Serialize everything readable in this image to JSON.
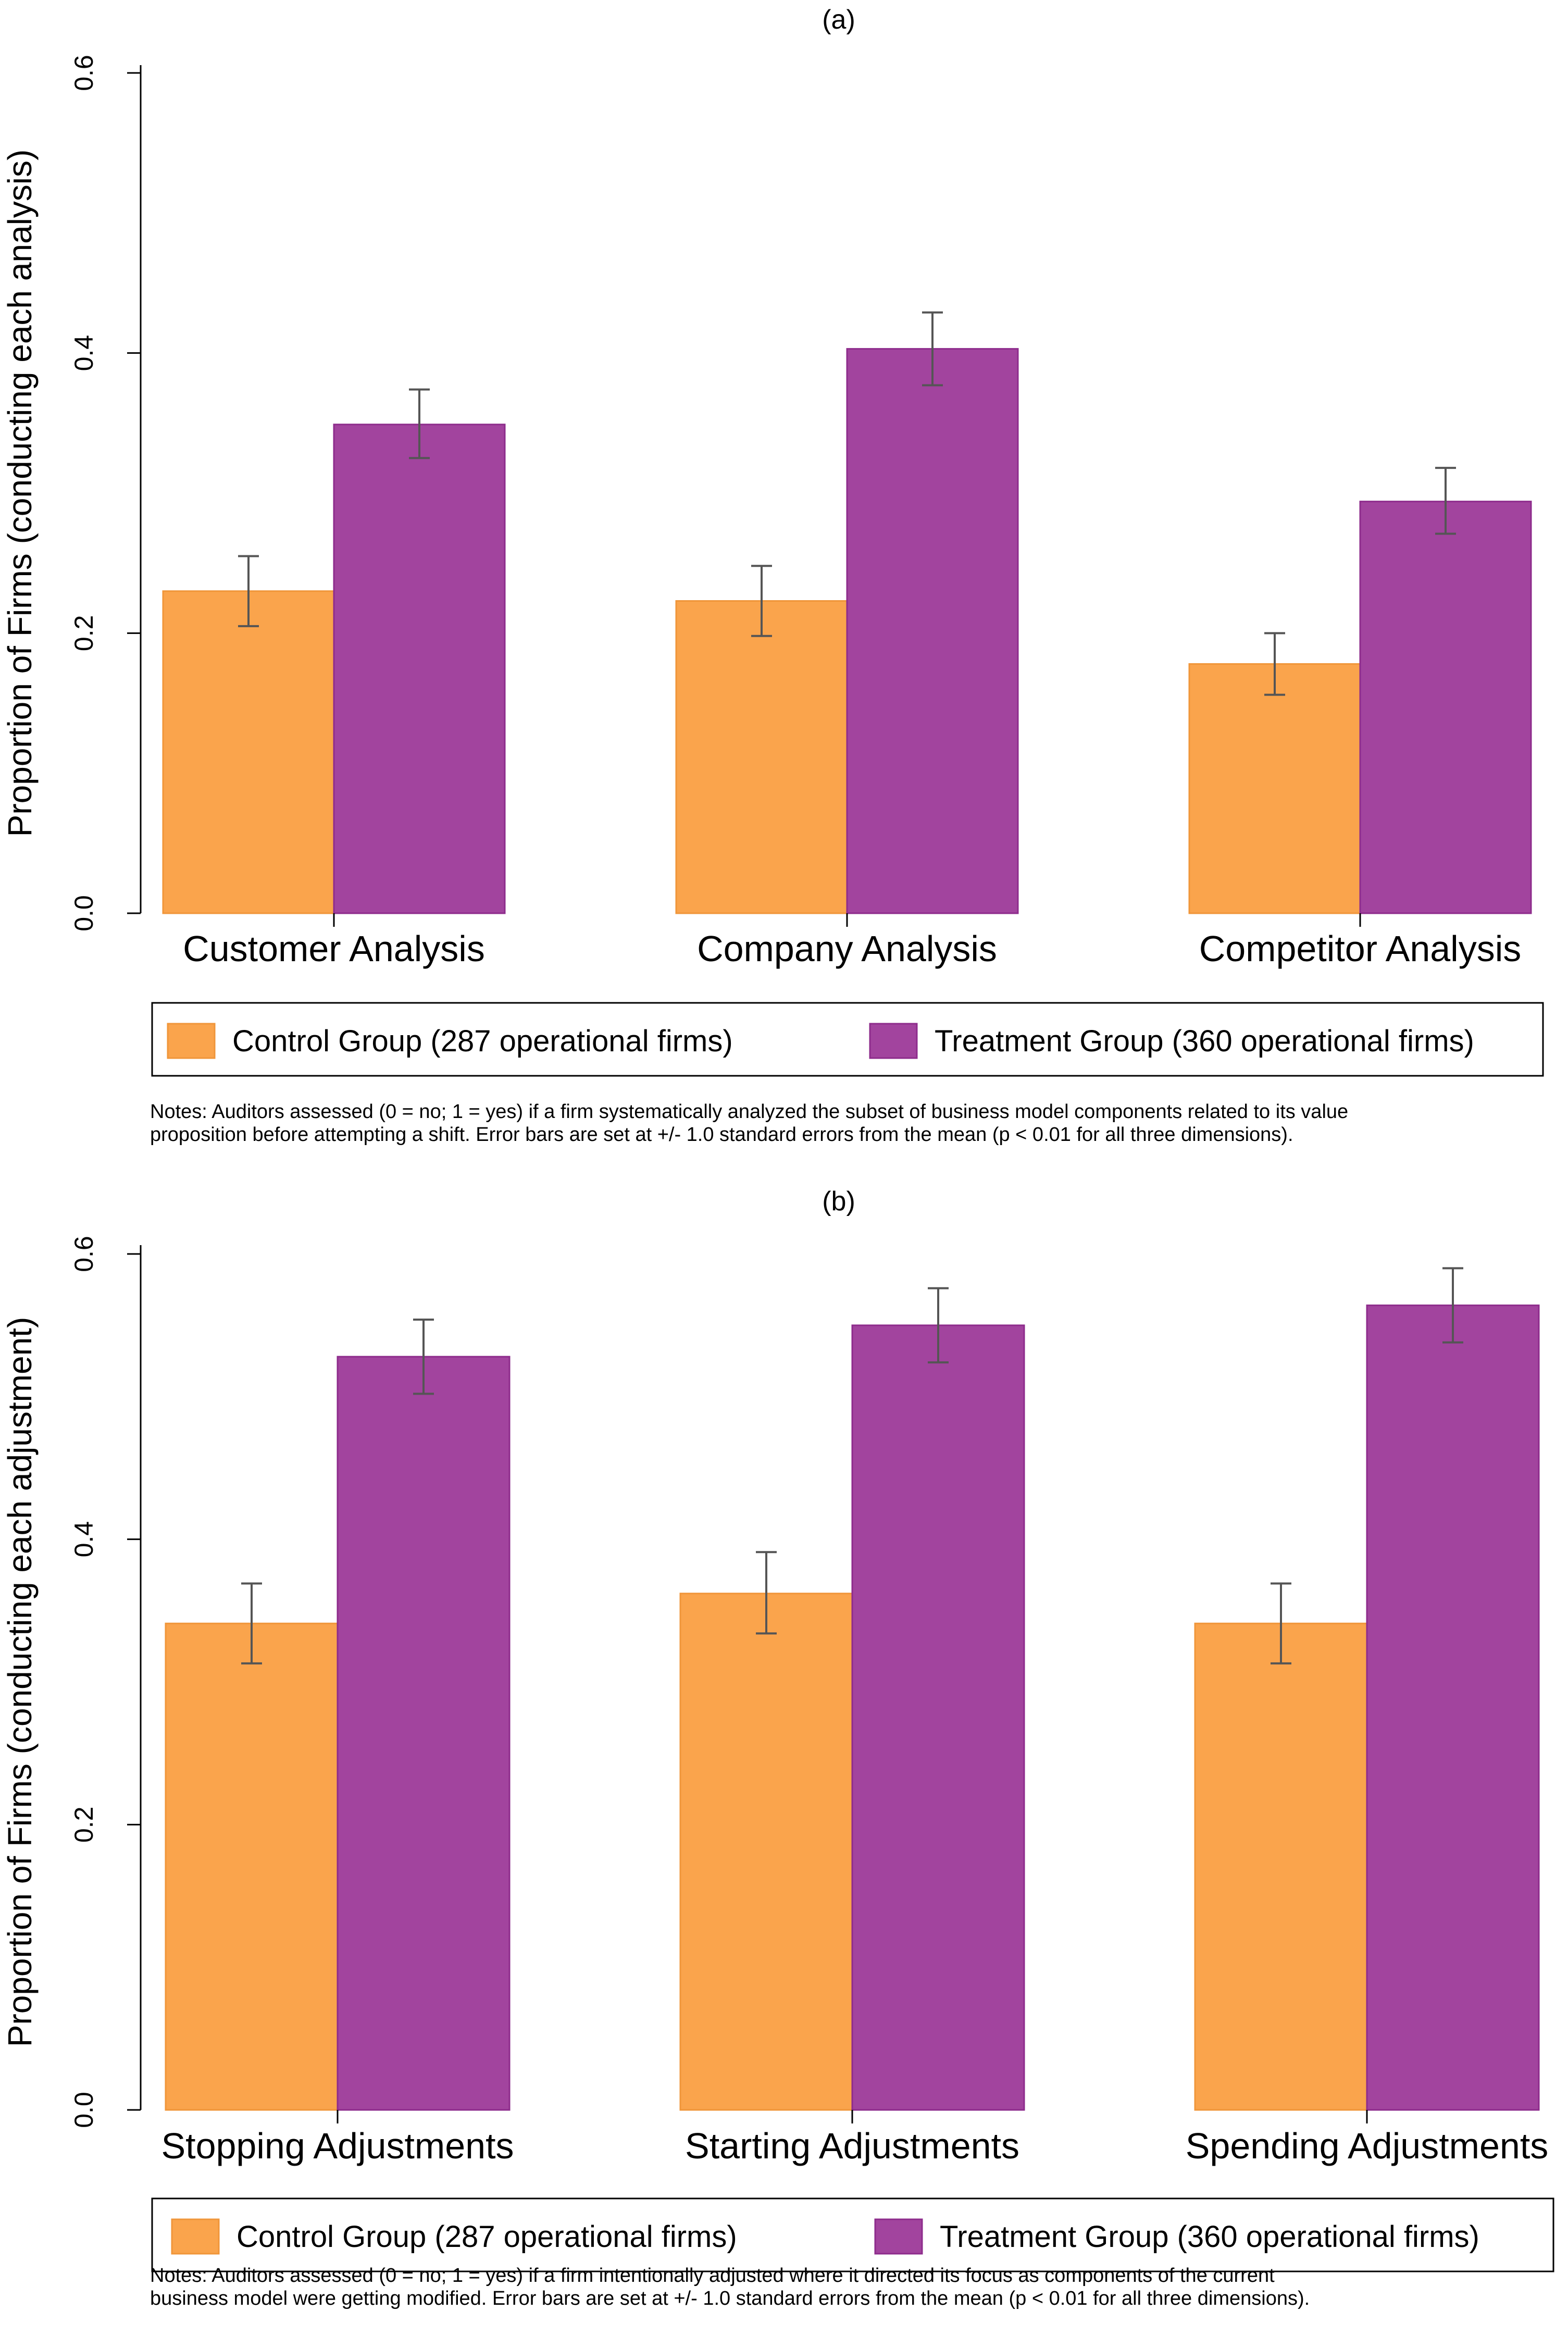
{
  "chart_data": [
    {
      "type": "bar",
      "title": "(a)",
      "ylabel": "Proportion of Firms  (conducting each analysis)",
      "xlabel": "",
      "ylim": [
        0,
        0.6
      ],
      "yticks": [
        "0.0",
        "0.2",
        "0.4",
        "0.6"
      ],
      "categories": [
        "Customer Analysis",
        "Company Analysis",
        "Competitor Analysis"
      ],
      "series": [
        {
          "name": "Control Group (287 operational firms)",
          "color": "#FAA44C",
          "values": [
            0.23,
            0.223,
            0.178
          ],
          "error_low": [
            0.205,
            0.198,
            0.156
          ],
          "error_high": [
            0.255,
            0.248,
            0.2
          ]
        },
        {
          "name": "Treatment Group (360 operational firms)",
          "color": "#A2449E",
          "values": [
            0.349,
            0.403,
            0.294
          ],
          "error_low": [
            0.325,
            0.377,
            0.271
          ],
          "error_high": [
            0.374,
            0.429,
            0.318
          ]
        }
      ],
      "notes_line1": "Notes: Auditors assessed (0 = no; 1 = yes) if a firm systematically analyzed the subset of business model components related to its value",
      "notes_line2": "proposition before attempting a shift. Error bars are set at +/- 1.0 standard errors from the mean (p < 0.01 for all three dimensions)."
    },
    {
      "type": "bar",
      "title": "(b)",
      "ylabel": "Proportion of Firms  (conducting each adjustment)",
      "xlabel": "",
      "ylim": [
        0,
        0.6
      ],
      "yticks": [
        "0.0",
        "0.2",
        "0.4",
        "0.6"
      ],
      "categories": [
        "Stopping Adjustments",
        "Starting Adjustments",
        "Spending Adjustments"
      ],
      "series": [
        {
          "name": "Control Group (287 operational firms)",
          "color": "#FAA44C",
          "values": [
            0.341,
            0.362,
            0.341
          ],
          "error_low": [
            0.313,
            0.334,
            0.313
          ],
          "error_high": [
            0.369,
            0.391,
            0.369
          ]
        },
        {
          "name": "Treatment Group (360 operational firms)",
          "color": "#A2449E",
          "values": [
            0.528,
            0.55,
            0.564
          ],
          "error_low": [
            0.502,
            0.524,
            0.538
          ],
          "error_high": [
            0.554,
            0.576,
            0.59
          ]
        }
      ],
      "notes_line1": "Notes: Auditors assessed (0 = no; 1 = yes) if a firm intentionally adjusted where it directed its focus as components of the current",
      "notes_line2": "business model were getting modified. Error bars are set at +/- 1.0 standard errors from the mean (p < 0.01 for all three dimensions)."
    }
  ]
}
